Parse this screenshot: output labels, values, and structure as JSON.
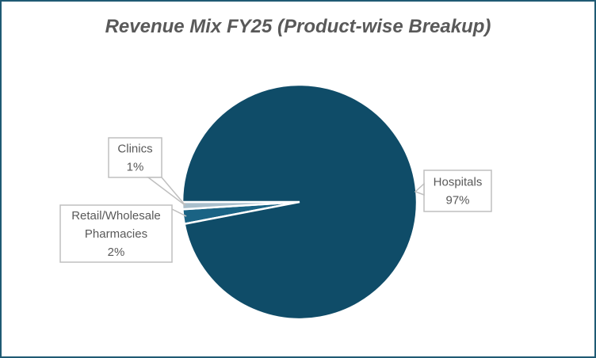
{
  "chart_data": {
    "type": "pie",
    "title": "Revenue Mix FY25 (Product-wise Breakup)",
    "slices": [
      {
        "name": "Retail/Wholesale Pharmacies",
        "value": 2,
        "label": "2%",
        "color": "#1a6384"
      },
      {
        "name": "Clinics",
        "value": 1,
        "label": "1%",
        "color": "#a9bfcc"
      },
      {
        "name": "Hospitals",
        "value": 97,
        "label": "97%",
        "color": "#0f4c68"
      }
    ],
    "legend": "none",
    "data_labels": "callouts"
  },
  "colors": {
    "border": "#1f5a73",
    "text": "#595959"
  }
}
